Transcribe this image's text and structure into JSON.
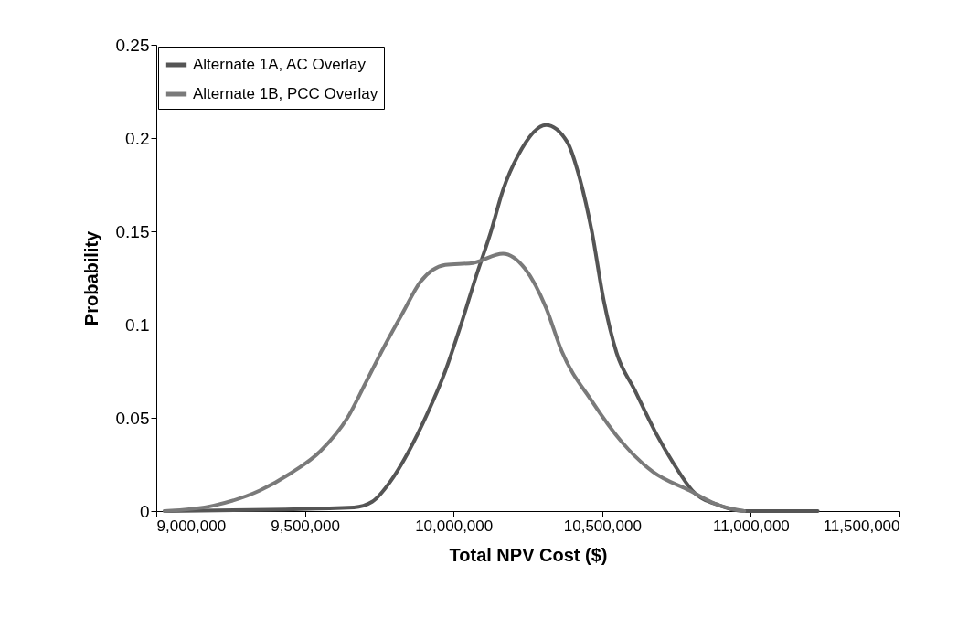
{
  "chart_data": {
    "type": "line",
    "xlabel": "Total NPV Cost ($)",
    "ylabel": "Probability",
    "xlim": [
      9000000,
      11500000
    ],
    "xticks": [
      {
        "value": 9000000,
        "label": "9,000,000"
      },
      {
        "value": 9500000,
        "label": "9,500,000"
      },
      {
        "value": 10000000,
        "label": "10,000,000"
      },
      {
        "value": 10500000,
        "label": "10,500,000"
      },
      {
        "value": 11000000,
        "label": "11,000,000"
      },
      {
        "value": 11500000,
        "label": "11,500,000"
      }
    ],
    "ylim": [
      0,
      0.25
    ],
    "yticks": [
      0,
      0.05,
      0.1,
      0.15,
      0.2,
      0.25
    ],
    "grid": false,
    "legend": "top left",
    "marker": "none",
    "line_style": "solid",
    "series": [
      {
        "name": "Alternate 1A, AC Overlay",
        "color": "#555555",
        "x": [
          9028000,
          9665000,
          9726000,
          9788000,
          9849000,
          9911000,
          9972000,
          10025000,
          10074000,
          10126000,
          10166000,
          10218000,
          10311000,
          10382000,
          10425000,
          10465000,
          10505000,
          10548000,
          10609000,
          10680000,
          10742000,
          10803000,
          10895000,
          10978000,
          11225000
        ],
        "values": [
          0,
          0.002,
          0.005,
          0.016,
          0.032,
          0.052,
          0.075,
          0.1,
          0.125,
          0.15,
          0.172,
          0.191,
          0.207,
          0.198,
          0.178,
          0.15,
          0.113,
          0.085,
          0.065,
          0.042,
          0.025,
          0.011,
          0.003,
          0,
          0
        ]
      },
      {
        "name": "Alternate 1B, PCC Overlay",
        "color": "#7a7a7a",
        "x": [
          9028000,
          9194000,
          9348000,
          9449000,
          9551000,
          9643000,
          9705000,
          9766000,
          9828000,
          9889000,
          9972000,
          10065000,
          10166000,
          10240000,
          10311000,
          10363000,
          10465000,
          10566000,
          10671000,
          10794000,
          10895000,
          10978000
        ],
        "values": [
          0,
          0.003,
          0.011,
          0.02,
          0.032,
          0.05,
          0.069,
          0.088,
          0.106,
          0.123,
          0.132,
          0.133,
          0.138,
          0.13,
          0.109,
          0.086,
          0.059,
          0.037,
          0.021,
          0.011,
          0.003,
          0
        ]
      }
    ]
  }
}
